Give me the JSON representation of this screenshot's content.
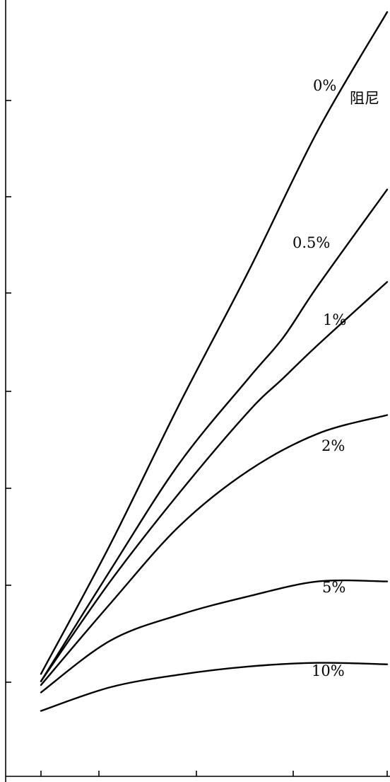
{
  "chart_data": {
    "type": "line",
    "title": "",
    "xlabel": "",
    "ylabel": "",
    "xlim": [
      0,
      100
    ],
    "ylim": [
      0,
      100
    ],
    "grid": false,
    "legend": "inline",
    "x_tick_labels": [],
    "y_tick_labels": [],
    "series_suffix": "阻尼",
    "series": [
      {
        "name": "0%",
        "x": [
          0,
          20,
          40,
          60,
          80,
          100
        ],
        "y": [
          10.5,
          28,
          47,
          65,
          84,
          100
        ]
      },
      {
        "name": "0.5%",
        "x": [
          0,
          20,
          40,
          60,
          70,
          80,
          100
        ],
        "y": [
          9.5,
          24.5,
          39,
          50.5,
          56,
          63,
          76
        ]
      },
      {
        "name": "1%",
        "x": [
          0,
          20,
          40,
          60,
          70,
          80,
          100
        ],
        "y": [
          9.5,
          23,
          35,
          46,
          50.5,
          55,
          63.5
        ]
      },
      {
        "name": "2%",
        "x": [
          0,
          20,
          40,
          60,
          80,
          100
        ],
        "y": [
          9,
          20,
          30.5,
          38,
          43,
          45.5
        ]
      },
      {
        "name": "5%",
        "x": [
          0,
          20,
          40,
          60,
          80,
          100
        ],
        "y": [
          8,
          15,
          18.5,
          21,
          23,
          23
        ]
      },
      {
        "name": "10%",
        "x": [
          0,
          20,
          40,
          60,
          80,
          100
        ],
        "y": [
          5.5,
          8.7,
          10.4,
          11.5,
          12,
          11.8
        ]
      }
    ]
  }
}
